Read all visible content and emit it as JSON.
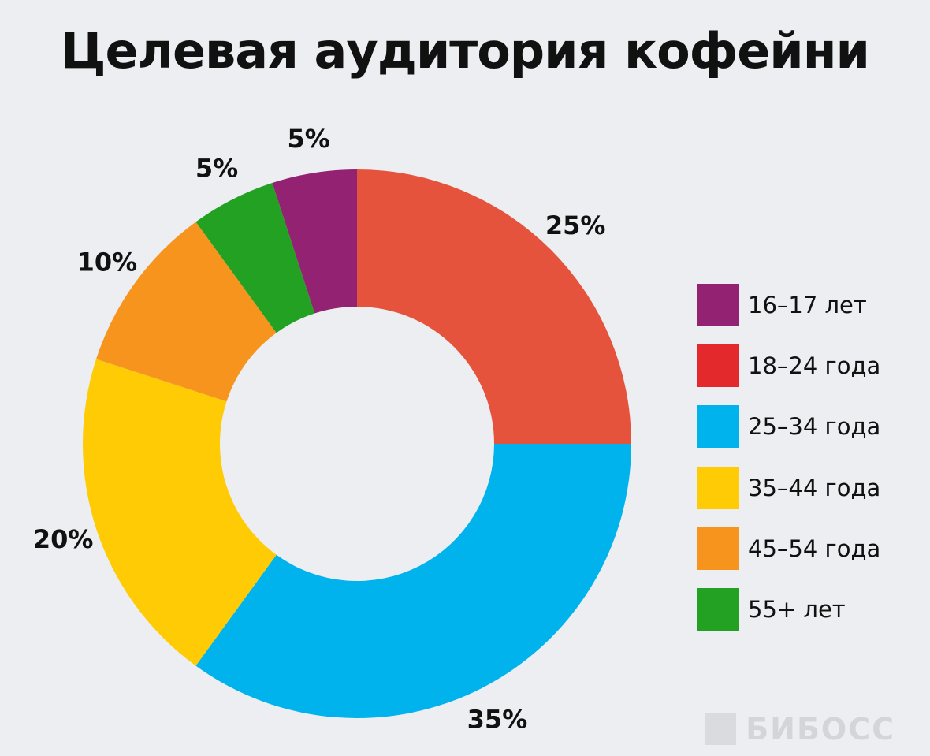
{
  "chart_data": {
    "type": "pie",
    "donut": true,
    "title": "Целевая аудитория кофейни",
    "legend_position": "right",
    "slices": [
      {
        "label": "18–24 года",
        "value": 25,
        "value_label": "25%",
        "color": "#e6533c",
        "legend_color": "#e3292b"
      },
      {
        "label": "25–34 года",
        "value": 35,
        "value_label": "35%",
        "color": "#00b3ec",
        "legend_color": "#00b3ec"
      },
      {
        "label": "35–44 года",
        "value": 20,
        "value_label": "20%",
        "color": "#fecb05",
        "legend_color": "#fecb05"
      },
      {
        "label": "45–54 года",
        "value": 10,
        "value_label": "10%",
        "color": "#f7941e",
        "legend_color": "#f7941e"
      },
      {
        "label": "55+ лет",
        "value": 5,
        "value_label": "5%",
        "color": "#22a122",
        "legend_color": "#22a122"
      },
      {
        "label": "16–17 лет",
        "value": 5,
        "value_label": "5%",
        "color": "#932272",
        "legend_color": "#932272"
      }
    ],
    "legend_order": [
      5,
      0,
      1,
      2,
      3,
      4
    ]
  },
  "watermark": {
    "text": "БИБОСС",
    "color": "#d3d5d9"
  }
}
